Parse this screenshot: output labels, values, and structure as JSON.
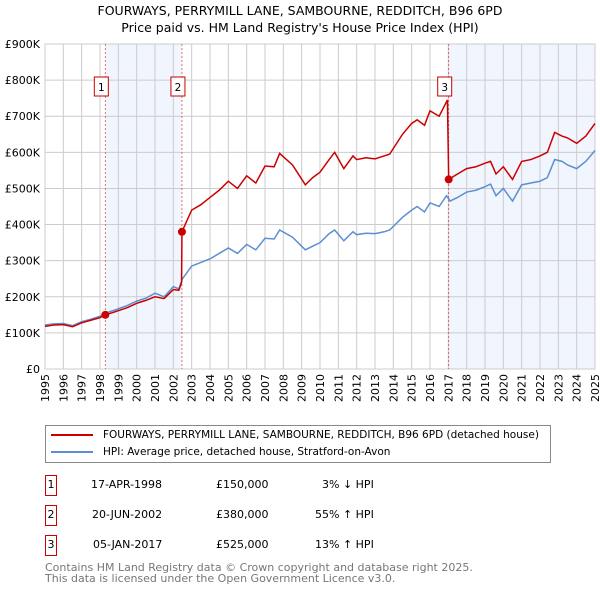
{
  "chart_data": {
    "type": "line",
    "title": "FOURWAYS, PERRYMILL LANE, SAMBOURNE, REDDITCH, B96 6PD",
    "subtitle": "Price paid vs. HM Land Registry's House Price Index (HPI)",
    "xlim": [
      1995,
      2025
    ],
    "ylim": [
      0,
      900000
    ],
    "x_ticks": [
      "1995",
      "1996",
      "1997",
      "1998",
      "1999",
      "2000",
      "2001",
      "2002",
      "2003",
      "2004",
      "2005",
      "2006",
      "2007",
      "2008",
      "2009",
      "2010",
      "2011",
      "2012",
      "2013",
      "2014",
      "2015",
      "2016",
      "2017",
      "2018",
      "2019",
      "2020",
      "2021",
      "2022",
      "2023",
      "2024",
      "2025"
    ],
    "y_ticks": [
      {
        "v": 0,
        "label": "£0"
      },
      {
        "v": 100000,
        "label": "£100K"
      },
      {
        "v": 200000,
        "label": "£200K"
      },
      {
        "v": 300000,
        "label": "£300K"
      },
      {
        "v": 400000,
        "label": "£400K"
      },
      {
        "v": 500000,
        "label": "£500K"
      },
      {
        "v": 600000,
        "label": "£600K"
      },
      {
        "v": 700000,
        "label": "£700K"
      },
      {
        "v": 800000,
        "label": "£800K"
      },
      {
        "v": 900000,
        "label": "£900K"
      }
    ],
    "grid": true,
    "series": [
      {
        "name": "FOURWAYS, PERRYMILL LANE, SAMBOURNE, REDDITCH, B96 6PD (detached house)",
        "color": "#cc0000",
        "x": [
          1995,
          1995.5,
          1996,
          1996.5,
          1997,
          1997.5,
          1998,
          1998.3,
          1998.8,
          1999.5,
          2000,
          2000.5,
          2001,
          2001.5,
          2002,
          2002.3,
          2002.45,
          2002.47,
          2003,
          2003.5,
          2004,
          2004.5,
          2005,
          2005.5,
          2006,
          2006.5,
          2007,
          2007.5,
          2007.8,
          2008.5,
          2009.2,
          2009.6,
          2010,
          2010.5,
          2010.8,
          2011.3,
          2011.8,
          2012,
          2012.5,
          2013,
          2013.5,
          2013.8,
          2014.5,
          2015,
          2015.3,
          2015.7,
          2016,
          2016.5,
          2016.95,
          2017.02,
          2017.5,
          2018,
          2018.5,
          2019,
          2019.3,
          2019.6,
          2020,
          2020.5,
          2021,
          2021.5,
          2022,
          2022.4,
          2022.8,
          2023.2,
          2023.5,
          2024,
          2024.5,
          2025
        ],
        "y": [
          118000,
          122000,
          123000,
          117000,
          128000,
          135000,
          142000,
          150000,
          158000,
          170000,
          182000,
          190000,
          200000,
          195000,
          220000,
          218000,
          240000,
          380000,
          440000,
          455000,
          475000,
          495000,
          520000,
          500000,
          535000,
          515000,
          562000,
          560000,
          597000,
          565000,
          510000,
          530000,
          545000,
          580000,
          600000,
          555000,
          590000,
          580000,
          585000,
          582000,
          590000,
          595000,
          650000,
          680000,
          690000,
          675000,
          715000,
          700000,
          745000,
          525000,
          540000,
          555000,
          560000,
          570000,
          575000,
          540000,
          560000,
          525000,
          575000,
          580000,
          590000,
          600000,
          655000,
          645000,
          640000,
          625000,
          645000,
          680000
        ]
      },
      {
        "name": "HPI: Average price, detached house, Stratford-on-Avon",
        "color": "#5b8fd0",
        "x": [
          1995,
          1995.5,
          1996,
          1996.5,
          1997,
          1997.5,
          1998,
          1998.3,
          1998.8,
          1999.5,
          2000,
          2000.5,
          2001,
          2001.5,
          2002,
          2002.3,
          2002.5,
          2003,
          2003.5,
          2004,
          2004.5,
          2005,
          2005.5,
          2006,
          2006.5,
          2007,
          2007.5,
          2007.8,
          2008.5,
          2009.2,
          2009.6,
          2010,
          2010.5,
          2010.8,
          2011.3,
          2011.8,
          2012,
          2012.5,
          2013,
          2013.5,
          2013.8,
          2014.5,
          2015,
          2015.3,
          2015.7,
          2016,
          2016.5,
          2016.9,
          2017.1,
          2017.5,
          2018,
          2018.5,
          2019,
          2019.3,
          2019.6,
          2020,
          2020.5,
          2021,
          2021.5,
          2022,
          2022.4,
          2022.8,
          2023.2,
          2023.5,
          2024,
          2024.5,
          2025
        ],
        "y": [
          122000,
          125000,
          126000,
          120000,
          131000,
          138000,
          146000,
          155000,
          163000,
          176000,
          188000,
          196000,
          210000,
          200000,
          228000,
          222000,
          250000,
          285000,
          295000,
          305000,
          320000,
          335000,
          320000,
          345000,
          330000,
          362000,
          360000,
          385000,
          365000,
          330000,
          340000,
          350000,
          375000,
          385000,
          355000,
          380000,
          372000,
          376000,
          375000,
          380000,
          385000,
          420000,
          440000,
          450000,
          435000,
          460000,
          450000,
          480000,
          465000,
          475000,
          490000,
          495000,
          505000,
          512000,
          480000,
          500000,
          465000,
          510000,
          515000,
          520000,
          530000,
          580000,
          575000,
          565000,
          555000,
          575000,
          605000
        ]
      }
    ],
    "sales": [
      {
        "label": "1",
        "x": 1998.29,
        "y": 150000,
        "date": "17-APR-1998",
        "price": "£150,000",
        "hpi": "3% ↓ HPI"
      },
      {
        "label": "2",
        "x": 2002.47,
        "y": 380000,
        "date": "20-JUN-2002",
        "price": "£380,000",
        "hpi": "55% ↑ HPI"
      },
      {
        "label": "3",
        "x": 2017.02,
        "y": 525000,
        "date": "05-JAN-2017",
        "price": "£525,000",
        "hpi": "13% ↑ HPI"
      }
    ],
    "shaded_ranges": [
      [
        1998.29,
        2002.47
      ],
      [
        2017.02,
        2025
      ]
    ]
  },
  "footer": {
    "line1": "Contains HM Land Registry data © Crown copyright and database right 2025.",
    "line2": "This data is licensed under the Open Government Licence v3.0."
  }
}
